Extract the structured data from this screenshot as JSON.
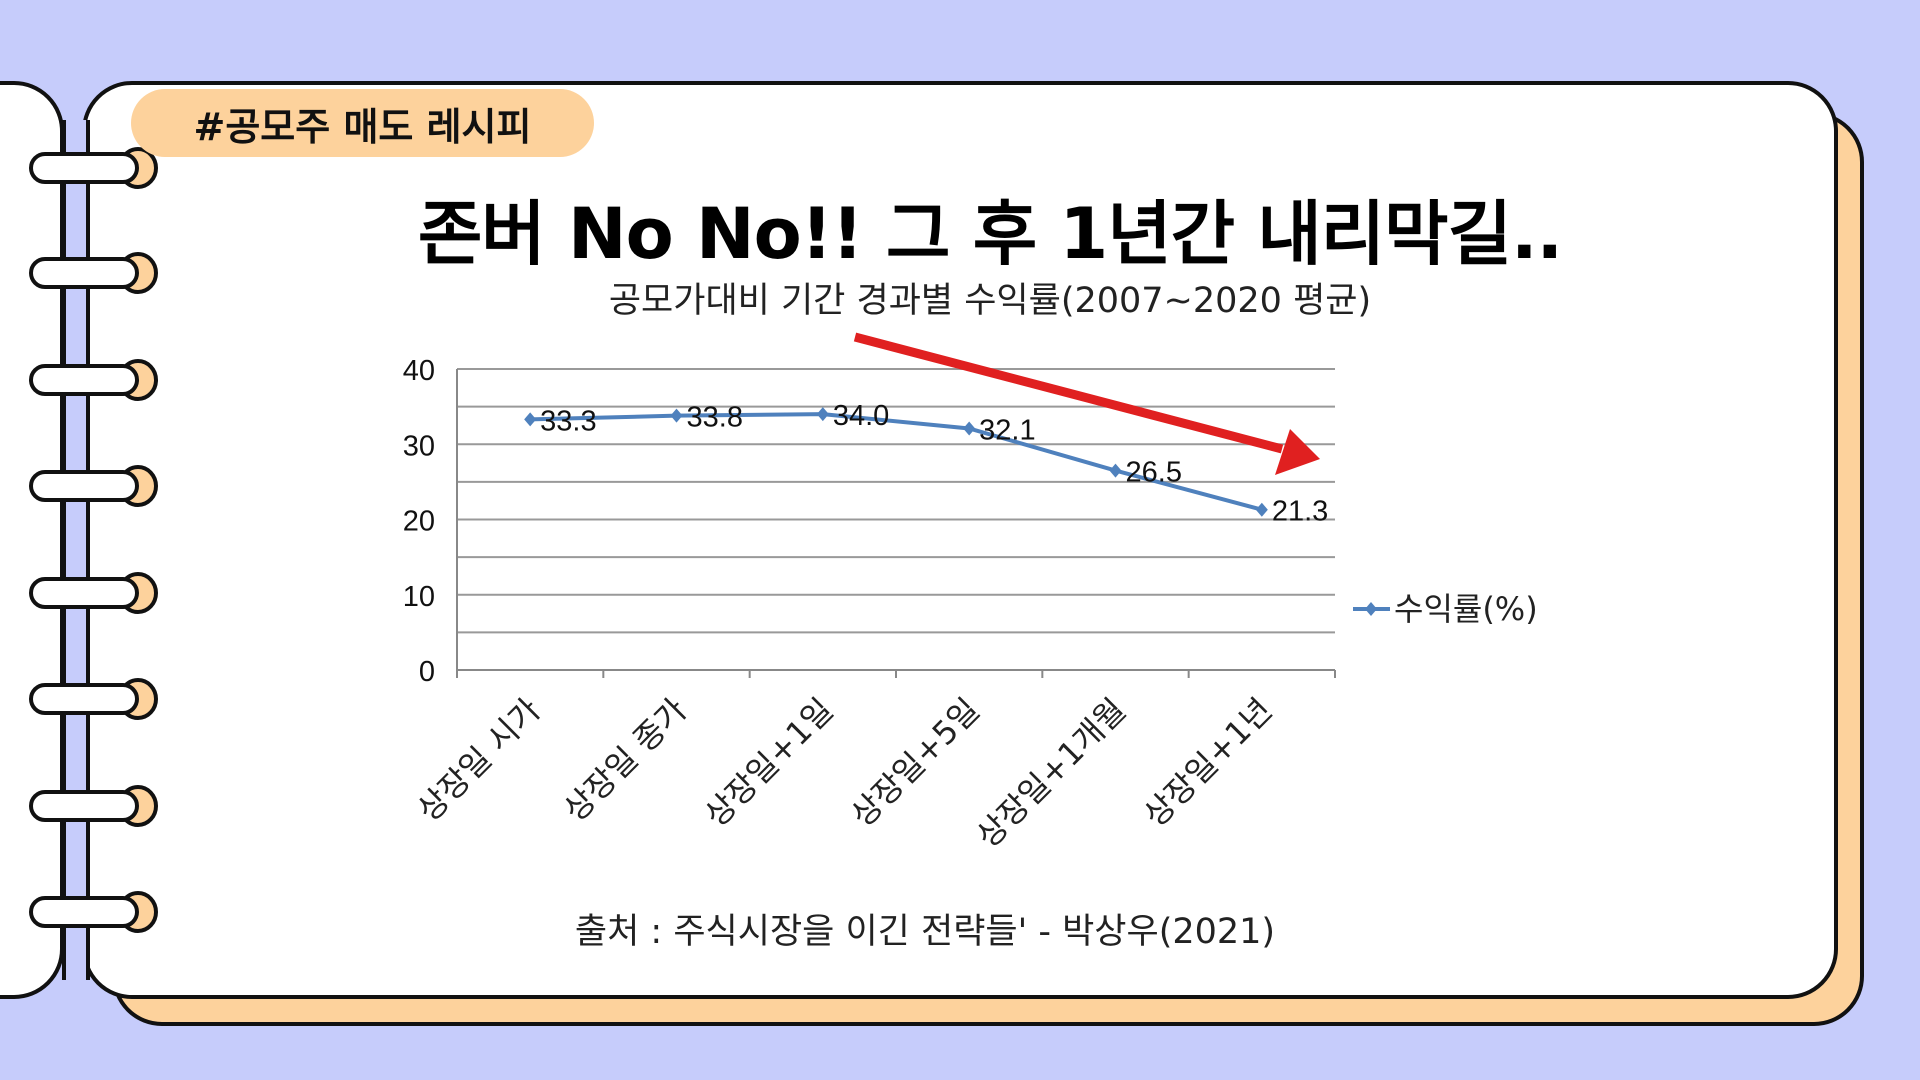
{
  "tag": "#공모주 매도 레시피",
  "title": "존버 No No!! 그 후 1년간 내리막길..",
  "source": "출처 : 주식시장을 이긴 전략들' - 박상우(2021)",
  "colors": {
    "background": "#c6ccfb",
    "accent": "#fdd29c",
    "series": "#4f81bd",
    "arrow": "#e02020"
  },
  "chart_data": {
    "type": "line",
    "title": "공모가대비 기간 경과별 수익률(2007~2020 평균)",
    "categories": [
      "상장일 시가",
      "상장일 종가",
      "상장일+1일",
      "상장일+5일",
      "상장일+1개월",
      "상장일+1년"
    ],
    "series": [
      {
        "name": "수익률(%)",
        "values": [
          33.3,
          33.8,
          34.0,
          32.1,
          26.5,
          21.3
        ],
        "labels": [
          "33.3",
          "33.8",
          "34.0",
          "32.1",
          "26.5",
          "21.3"
        ]
      }
    ],
    "ylim": [
      0,
      40
    ],
    "yticks": [
      "0",
      "10",
      "20",
      "30",
      "40"
    ],
    "grid": true,
    "legend": "right",
    "annotation": "red downward trend arrow"
  }
}
